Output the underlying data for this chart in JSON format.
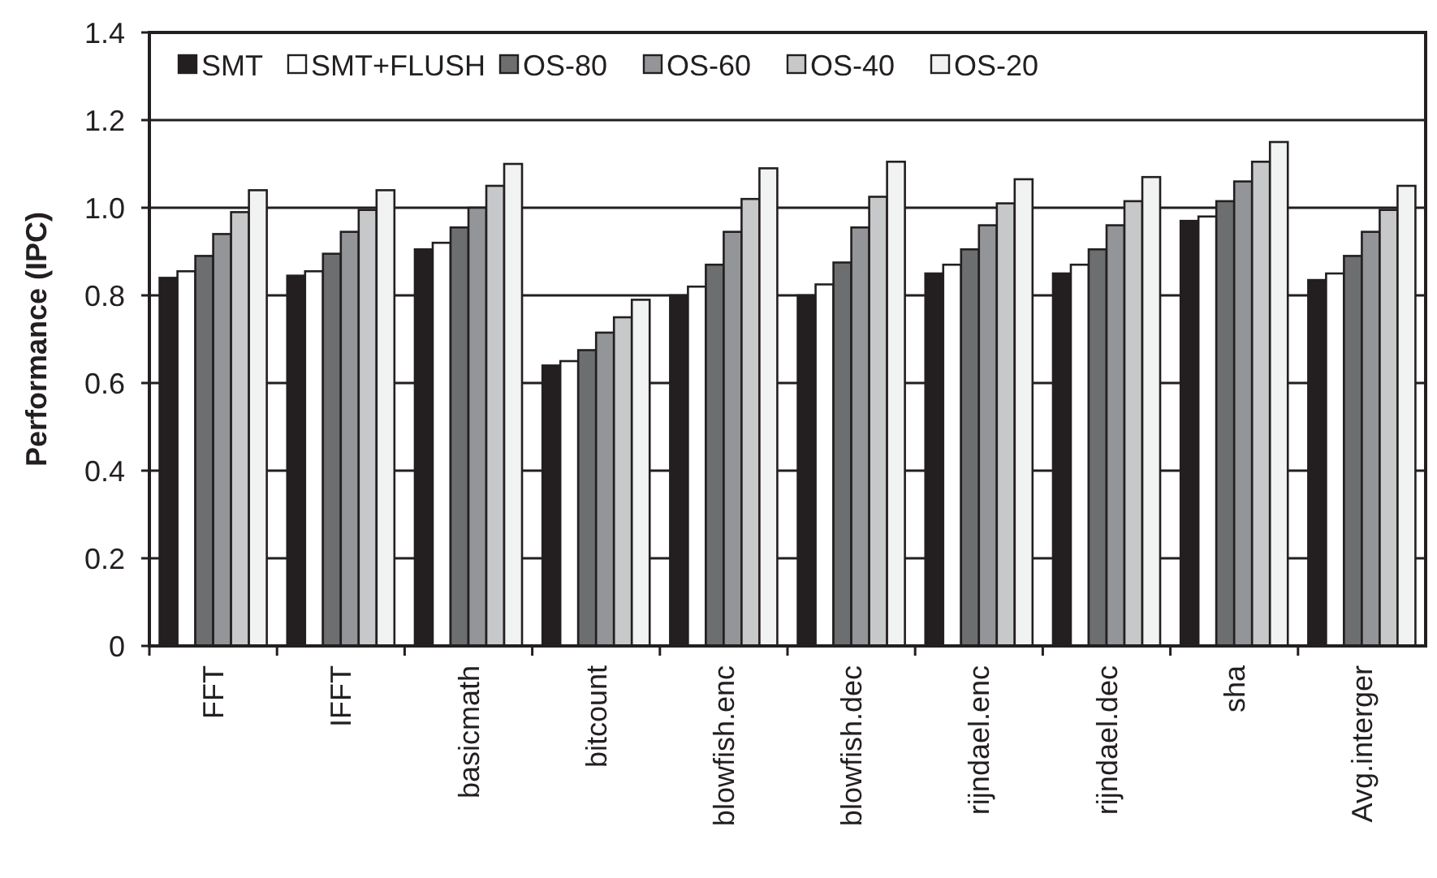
{
  "chart_data": {
    "type": "bar",
    "ylabel": "Performance (IPC)",
    "categories": [
      "FFT",
      "IFFT",
      "basicmath",
      "bitcount",
      "blowfish.enc",
      "blowfish.dec",
      "rijndael.enc",
      "rijndael.dec",
      "sha",
      "Avg.interger"
    ],
    "series": [
      {
        "name": "SMT",
        "color": "#231f20",
        "values": [
          0.84,
          0.845,
          0.905,
          0.64,
          0.8,
          0.8,
          0.85,
          0.85,
          0.97,
          0.835
        ]
      },
      {
        "name": "SMT+FLUSH",
        "color": "#ffffff",
        "values": [
          0.855,
          0.855,
          0.92,
          0.65,
          0.82,
          0.825,
          0.87,
          0.87,
          0.98,
          0.85
        ]
      },
      {
        "name": "OS-80",
        "color": "#6d6e70",
        "values": [
          0.89,
          0.895,
          0.955,
          0.675,
          0.87,
          0.875,
          0.905,
          0.905,
          1.015,
          0.89
        ]
      },
      {
        "name": "OS-60",
        "color": "#939598",
        "values": [
          0.94,
          0.945,
          1.0,
          0.715,
          0.945,
          0.955,
          0.96,
          0.96,
          1.06,
          0.945
        ]
      },
      {
        "name": "OS-40",
        "color": "#c7c8ca",
        "values": [
          0.99,
          0.995,
          1.05,
          0.75,
          1.02,
          1.025,
          1.01,
          1.015,
          1.105,
          0.995
        ]
      },
      {
        "name": "OS-20",
        "color": "#f1f2f2",
        "values": [
          1.04,
          1.04,
          1.1,
          0.79,
          1.09,
          1.105,
          1.065,
          1.07,
          1.15,
          1.05
        ]
      }
    ],
    "ylim": [
      0,
      1.4
    ],
    "yticks": [
      {
        "value": 0,
        "label": "0"
      },
      {
        "value": 0.2,
        "label": "0.2"
      },
      {
        "value": 0.4,
        "label": "0.4"
      },
      {
        "value": 0.6,
        "label": "0.6"
      },
      {
        "value": 0.8,
        "label": "0.8"
      },
      {
        "value": 1,
        "label": "1.0"
      },
      {
        "value": 1.2,
        "label": "1.2"
      },
      {
        "value": 1.4,
        "label": "1.4"
      }
    ],
    "grid": "y",
    "legend": "top"
  }
}
